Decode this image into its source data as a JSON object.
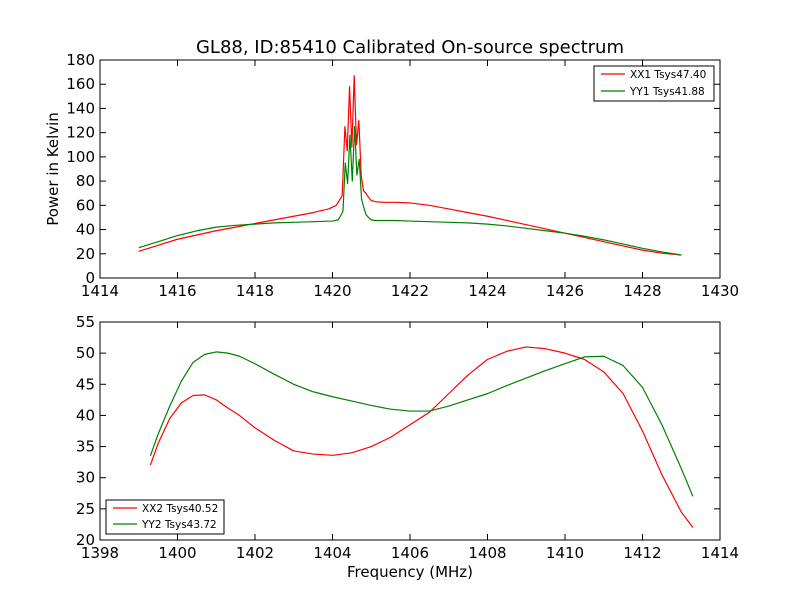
{
  "colors": {
    "series1": "#ff0000",
    "series2": "#008000",
    "axes": "#000000",
    "background": "#ffffff"
  },
  "chart_data": [
    {
      "type": "line",
      "title": "GL88, ID:85410 Calibrated On-source spectrum",
      "xlabel": "",
      "ylabel": "Power in Kelvin",
      "xlim": [
        1414,
        1430
      ],
      "ylim": [
        0,
        180
      ],
      "xticks": [
        "1414",
        "1416",
        "1418",
        "1420",
        "1422",
        "1424",
        "1426",
        "1428",
        "1430"
      ],
      "yticks": [
        "0",
        "20",
        "40",
        "60",
        "80",
        "100",
        "120",
        "140",
        "160",
        "180"
      ],
      "legend_position": "upper right",
      "grid": false,
      "series": [
        {
          "name": "XX1 Tsys47.40",
          "color": "#ff0000",
          "x": [
            1415.0,
            1415.5,
            1416.0,
            1416.5,
            1417.0,
            1417.5,
            1418.0,
            1418.5,
            1419.0,
            1419.5,
            1419.9,
            1420.1,
            1420.25,
            1420.32,
            1420.38,
            1420.44,
            1420.5,
            1420.56,
            1420.62,
            1420.68,
            1420.74,
            1420.8,
            1420.86,
            1420.92,
            1421.0,
            1421.1,
            1421.3,
            1421.6,
            1422.0,
            1422.5,
            1423.0,
            1423.5,
            1424.0,
            1424.5,
            1425.0,
            1425.5,
            1426.0,
            1426.5,
            1427.0,
            1427.5,
            1428.0,
            1428.5,
            1429.0
          ],
          "y": [
            22,
            27,
            32,
            35.5,
            39,
            42,
            45,
            48,
            51,
            54,
            57,
            60,
            68,
            125,
            105,
            158,
            108,
            167,
            110,
            130,
            85,
            72,
            70,
            67,
            64,
            63,
            62.5,
            62.5,
            62,
            60,
            57,
            54,
            51,
            47.5,
            44,
            40.5,
            37,
            33.5,
            30,
            26.5,
            23,
            20.5,
            19
          ]
        },
        {
          "name": "YY1 Tsys41.88",
          "color": "#008000",
          "x": [
            1415.0,
            1415.5,
            1416.0,
            1416.5,
            1417.0,
            1417.5,
            1418.0,
            1418.5,
            1419.0,
            1419.5,
            1420.0,
            1420.15,
            1420.27,
            1420.33,
            1420.39,
            1420.45,
            1420.51,
            1420.57,
            1420.63,
            1420.69,
            1420.75,
            1420.81,
            1420.87,
            1420.93,
            1421.0,
            1421.1,
            1421.3,
            1421.6,
            1422.0,
            1422.5,
            1423.0,
            1423.5,
            1424.0,
            1424.5,
            1425.0,
            1425.5,
            1426.0,
            1426.5,
            1427.0,
            1427.5,
            1428.0,
            1428.5,
            1429.0
          ],
          "y": [
            25,
            30,
            35,
            39,
            42,
            43.5,
            44.5,
            45.5,
            46,
            46.5,
            47,
            48,
            55,
            95,
            78,
            118,
            80,
            125,
            85,
            98,
            65,
            58,
            52,
            50,
            48,
            47.5,
            47.5,
            47.5,
            47,
            46.5,
            46,
            45.5,
            44.5,
            43,
            41,
            39,
            37,
            34.5,
            31.5,
            28,
            24.5,
            21.5,
            19
          ]
        }
      ]
    },
    {
      "type": "line",
      "title": "",
      "xlabel": "Frequency (MHz)",
      "ylabel": "",
      "xlim": [
        1398,
        1414
      ],
      "ylim": [
        20,
        55
      ],
      "xticks": [
        "1398",
        "1400",
        "1402",
        "1404",
        "1406",
        "1408",
        "1410",
        "1412",
        "1414"
      ],
      "yticks": [
        "20",
        "25",
        "30",
        "35",
        "40",
        "45",
        "50",
        "55"
      ],
      "legend_position": "lower left",
      "grid": false,
      "series": [
        {
          "name": "XX2 Tsys40.52",
          "color": "#ff0000",
          "x": [
            1399.3,
            1399.5,
            1399.8,
            1400.1,
            1400.4,
            1400.7,
            1401.0,
            1401.3,
            1401.6,
            1402.0,
            1402.5,
            1403.0,
            1403.5,
            1404.0,
            1404.5,
            1405.0,
            1405.5,
            1406.0,
            1406.5,
            1407.0,
            1407.5,
            1408.0,
            1408.5,
            1409.0,
            1409.5,
            1410.0,
            1410.5,
            1411.0,
            1411.5,
            1412.0,
            1412.5,
            1413.0,
            1413.3
          ],
          "y": [
            32,
            35.5,
            39.5,
            42,
            43.2,
            43.3,
            42.5,
            41.2,
            40,
            38,
            36,
            34.3,
            33.8,
            33.6,
            34,
            35,
            36.5,
            38.5,
            40.5,
            43.5,
            46.5,
            49,
            50.3,
            51,
            50.7,
            50,
            49,
            47,
            43.5,
            37.5,
            30.5,
            24.5,
            22
          ]
        },
        {
          "name": "YY2 Tsys43.72",
          "color": "#008000",
          "x": [
            1399.3,
            1399.5,
            1399.8,
            1400.1,
            1400.4,
            1400.7,
            1401.0,
            1401.3,
            1401.6,
            1402.0,
            1402.5,
            1403.0,
            1403.5,
            1404.0,
            1404.5,
            1405.0,
            1405.5,
            1406.0,
            1406.5,
            1407.0,
            1407.5,
            1408.0,
            1408.5,
            1409.0,
            1409.5,
            1410.0,
            1410.5,
            1411.0,
            1411.5,
            1412.0,
            1412.5,
            1413.0,
            1413.3
          ],
          "y": [
            33.5,
            37,
            41.5,
            45.5,
            48.5,
            49.8,
            50.2,
            50,
            49.5,
            48.3,
            46.6,
            45,
            43.8,
            43,
            42.3,
            41.6,
            41,
            40.7,
            40.7,
            41.5,
            42.5,
            43.5,
            44.8,
            46,
            47.2,
            48.3,
            49.4,
            49.5,
            48,
            44.5,
            38.5,
            31.5,
            27
          ]
        }
      ]
    }
  ]
}
